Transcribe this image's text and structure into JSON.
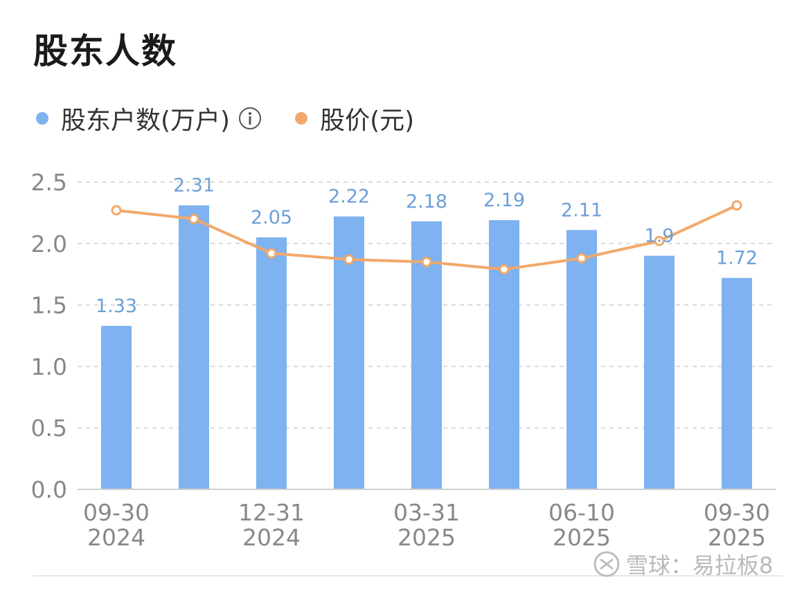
{
  "title": "股东人数",
  "legend": {
    "series1": "股东户数(万户)",
    "series2": "股价(元)"
  },
  "colors": {
    "bar": "#7EB2F0",
    "line": "#F2A86A",
    "label": "#6B9FD8",
    "axis_text": "#888888",
    "grid": "#d9d9d9"
  },
  "chart_data": {
    "type": "bar",
    "categories": [
      "09-30\n2024",
      "",
      "12-31\n2024",
      "",
      "03-31\n2025",
      "",
      "06-10\n2025",
      "",
      "09-30\n2025"
    ],
    "x_tick_labels": [
      {
        "index": 0,
        "line1": "09-30",
        "line2": "2024"
      },
      {
        "index": 2,
        "line1": "12-31",
        "line2": "2024"
      },
      {
        "index": 4,
        "line1": "03-31",
        "line2": "2025"
      },
      {
        "index": 6,
        "line1": "06-10",
        "line2": "2025"
      },
      {
        "index": 8,
        "line1": "09-30",
        "line2": "2025"
      }
    ],
    "series": [
      {
        "name": "股东户数(万户)",
        "type": "bar",
        "values": [
          1.33,
          2.31,
          2.05,
          2.22,
          2.18,
          2.19,
          2.11,
          1.9,
          1.72
        ],
        "labels": [
          "1.33",
          "2.31",
          "2.05",
          "2.22",
          "2.18",
          "2.19",
          "2.11",
          "1.9",
          "1.72"
        ]
      },
      {
        "name": "股价(元)",
        "type": "line",
        "values": [
          2.27,
          2.2,
          1.92,
          1.87,
          1.85,
          1.79,
          1.88,
          2.02,
          2.31
        ]
      }
    ],
    "ylim": [
      0,
      2.5
    ],
    "yticks": [
      "0.0",
      "0.5",
      "1.0",
      "1.5",
      "2.0",
      "2.5"
    ],
    "ytick_values": [
      0,
      0.5,
      1.0,
      1.5,
      2.0,
      2.5
    ]
  },
  "watermark": "雪球：易拉板8"
}
